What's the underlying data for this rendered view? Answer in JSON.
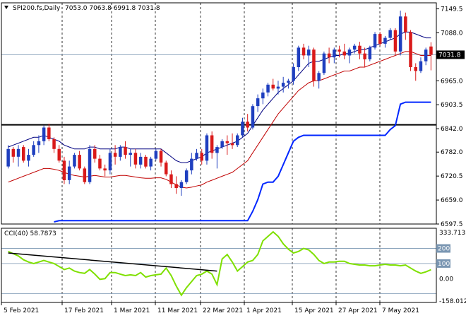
{
  "window": {
    "title": "SPI200.fs,Daily",
    "ohlc": "7053.0 7063.8 6991.8 7031.8",
    "collapse_icon": "triangle-down-icon"
  },
  "cci_panel": {
    "title": "CCI(40) 58.7873"
  },
  "colors": {
    "background": "#ffffff",
    "bull_candle": "#1f3fbf",
    "bear_candle": "#d91a1a",
    "upper_envelope": "#000080",
    "lower_envelope": "#c00000",
    "support_line": "#0026ff",
    "horizontal_level": "#000000",
    "cci_line": "#7fe000",
    "cci_levels": "#7a96b2",
    "current_price_tag": "#000000"
  },
  "chart_data": [
    {
      "type": "candlestick",
      "title": "SPI200.fs,Daily",
      "x_tick_labels": [
        "5 Feb 2021",
        "17 Feb 2021",
        "1 Mar 2021",
        "11 Mar 2021",
        "22 Mar 2021",
        "1 Apr 2021",
        "15 Apr 2021",
        "27 Apr 2021",
        "7 May 2021"
      ],
      "y_tick_labels": [
        "7149.5",
        "7088.0",
        "7031.8",
        "6965.0",
        "6903.5",
        "6842.0",
        "6782.0",
        "6720.5",
        "6659.0",
        "6597.5"
      ],
      "ylim": [
        6597.5,
        7165
      ],
      "current_price": 7031.8,
      "horizontal_level": 6852,
      "candles": [
        [
          6745,
          6800,
          6740,
          6790
        ],
        [
          6790,
          6795,
          6755,
          6770
        ],
        [
          6770,
          6800,
          6745,
          6790
        ],
        [
          6795,
          6800,
          6755,
          6760
        ],
        [
          6760,
          6790,
          6745,
          6775
        ],
        [
          6775,
          6810,
          6770,
          6800
        ],
        [
          6800,
          6825,
          6780,
          6810
        ],
        [
          6810,
          6850,
          6800,
          6845
        ],
        [
          6845,
          6855,
          6810,
          6815
        ],
        [
          6815,
          6820,
          6780,
          6790
        ],
        [
          6790,
          6800,
          6755,
          6760
        ],
        [
          6760,
          6770,
          6700,
          6710
        ],
        [
          6710,
          6760,
          6700,
          6745
        ],
        [
          6745,
          6780,
          6740,
          6775
        ],
        [
          6775,
          6785,
          6735,
          6740
        ],
        [
          6740,
          6745,
          6700,
          6705
        ],
        [
          6705,
          6800,
          6700,
          6790
        ],
        [
          6790,
          6800,
          6755,
          6765
        ],
        [
          6765,
          6775,
          6735,
          6740
        ],
        [
          6740,
          6750,
          6720,
          6735
        ],
        [
          6735,
          6790,
          6725,
          6780
        ],
        [
          6780,
          6800,
          6750,
          6770
        ],
        [
          6770,
          6800,
          6760,
          6795
        ],
        [
          6795,
          6810,
          6765,
          6775
        ],
        [
          6775,
          6790,
          6745,
          6780
        ],
        [
          6780,
          6790,
          6740,
          6750
        ],
        [
          6750,
          6780,
          6740,
          6770
        ],
        [
          6770,
          6775,
          6740,
          6745
        ],
        [
          6745,
          6770,
          6735,
          6765
        ],
        [
          6765,
          6790,
          6760,
          6785
        ],
        [
          6785,
          6790,
          6745,
          6755
        ],
        [
          6755,
          6760,
          6720,
          6725
        ],
        [
          6725,
          6735,
          6690,
          6700
        ],
        [
          6700,
          6720,
          6675,
          6690
        ],
        [
          6690,
          6710,
          6670,
          6705
        ],
        [
          6705,
          6740,
          6700,
          6735
        ],
        [
          6735,
          6780,
          6725,
          6765
        ],
        [
          6765,
          6790,
          6760,
          6780
        ],
        [
          6780,
          6790,
          6750,
          6760
        ],
        [
          6760,
          6830,
          6750,
          6825
        ],
        [
          6825,
          6835,
          6765,
          6780
        ],
        [
          6780,
          6800,
          6740,
          6795
        ],
        [
          6795,
          6815,
          6790,
          6810
        ],
        [
          6810,
          6825,
          6775,
          6805
        ],
        [
          6805,
          6830,
          6790,
          6800
        ],
        [
          6800,
          6830,
          6795,
          6825
        ],
        [
          6825,
          6870,
          6820,
          6860
        ],
        [
          6860,
          6880,
          6835,
          6845
        ],
        [
          6845,
          6905,
          6840,
          6900
        ],
        [
          6900,
          6930,
          6885,
          6920
        ],
        [
          6920,
          6945,
          6905,
          6935
        ],
        [
          6935,
          6960,
          6925,
          6955
        ],
        [
          6955,
          6970,
          6940,
          6945
        ],
        [
          6945,
          6965,
          6930,
          6950
        ],
        [
          6950,
          6975,
          6935,
          6960
        ],
        [
          6960,
          6970,
          6945,
          6965
        ],
        [
          6965,
          7010,
          6955,
          7000
        ],
        [
          7000,
          7055,
          6990,
          7050
        ],
        [
          7050,
          7060,
          7020,
          7030
        ],
        [
          7030,
          7055,
          7000,
          7045
        ],
        [
          7045,
          7050,
          6950,
          6965
        ],
        [
          6965,
          6990,
          6945,
          6985
        ],
        [
          6985,
          7040,
          6980,
          7035
        ],
        [
          7035,
          7050,
          7010,
          7025
        ],
        [
          7025,
          7050,
          7010,
          7045
        ],
        [
          7045,
          7055,
          7025,
          7040
        ],
        [
          7040,
          7060,
          7020,
          7030
        ],
        [
          7030,
          7050,
          7010,
          7045
        ],
        [
          7045,
          7060,
          7035,
          7055
        ],
        [
          7055,
          7065,
          7020,
          7035
        ],
        [
          7035,
          7050,
          7000,
          7020
        ],
        [
          7020,
          7055,
          7015,
          7050
        ],
        [
          7050,
          7090,
          7045,
          7085
        ],
        [
          7085,
          7090,
          7055,
          7060
        ],
        [
          7060,
          7080,
          7050,
          7075
        ],
        [
          7075,
          7100,
          7070,
          7095
        ],
        [
          7095,
          7100,
          7030,
          7040
        ],
        [
          7040,
          7145,
          7030,
          7130
        ],
        [
          7130,
          7140,
          7070,
          7090
        ],
        [
          7090,
          7095,
          6990,
          7000
        ],
        [
          7000,
          7010,
          6965,
          6990
        ],
        [
          6990,
          7025,
          6985,
          7015
        ],
        [
          7015,
          7050,
          7005,
          7045
        ],
        [
          7053,
          7063.8,
          6991.8,
          7031.8
        ]
      ],
      "upper_envelope": [
        6795,
        6800,
        6805,
        6810,
        6815,
        6820,
        6820,
        6825,
        6820,
        6815,
        6810,
        6800,
        6795,
        6790,
        6790,
        6790,
        6795,
        6795,
        6790,
        6790,
        6790,
        6790,
        6795,
        6795,
        6790,
        6790,
        6790,
        6790,
        6790,
        6790,
        6790,
        6780,
        6770,
        6760,
        6755,
        6755,
        6760,
        6765,
        6770,
        6780,
        6785,
        6790,
        6795,
        6800,
        6805,
        6810,
        6820,
        6830,
        6850,
        6870,
        6890,
        6905,
        6920,
        6935,
        6945,
        6955,
        6965,
        6980,
        6995,
        7010,
        7015,
        7015,
        7020,
        7025,
        7030,
        7030,
        7035,
        7035,
        7040,
        7045,
        7045,
        7050,
        7055,
        7060,
        7065,
        7070,
        7075,
        7085,
        7090,
        7090,
        7085,
        7080,
        7075,
        7075
      ],
      "lower_envelope": [
        6705,
        6710,
        6715,
        6720,
        6725,
        6730,
        6735,
        6740,
        6740,
        6738,
        6735,
        6730,
        6725,
        6722,
        6720,
        6718,
        6720,
        6722,
        6720,
        6718,
        6718,
        6720,
        6722,
        6722,
        6720,
        6718,
        6716,
        6715,
        6715,
        6716,
        6716,
        6712,
        6705,
        6698,
        6692,
        6690,
        6692,
        6695,
        6698,
        6705,
        6710,
        6715,
        6720,
        6725,
        6730,
        6740,
        6750,
        6760,
        6780,
        6800,
        6820,
        6840,
        6860,
        6880,
        6895,
        6910,
        6925,
        6940,
        6950,
        6960,
        6965,
        6965,
        6970,
        6975,
        6980,
        6985,
        6990,
        6990,
        6995,
        7000,
        7000,
        7005,
        7010,
        7015,
        7020,
        7025,
        7030,
        7035,
        7040,
        7040,
        7035,
        7030,
        7030,
        7030
      ],
      "support_level": [
        null,
        null,
        null,
        null,
        null,
        null,
        null,
        null,
        null,
        6603,
        6606,
        6606,
        6606,
        6606,
        6606,
        6606,
        6606,
        6606,
        6606,
        6606,
        6606,
        6606,
        6606,
        6606,
        6606,
        6606,
        6606,
        6606,
        6606,
        6606,
        6606,
        6606,
        6606,
        6606,
        6606,
        6606,
        6606,
        6606,
        6606,
        6606,
        6606,
        6606,
        6606,
        6606,
        6606,
        6606,
        6606,
        6606,
        6630,
        6660,
        6700,
        6705,
        6705,
        6720,
        6750,
        6780,
        6810,
        6820,
        6825,
        6825,
        6825,
        6825,
        6825,
        6825,
        6825,
        6825,
        6825,
        6825,
        6825,
        6825,
        6825,
        6825,
        6825,
        6825,
        6825,
        6840,
        6850,
        6905,
        6910,
        6910,
        6910,
        6910,
        6910,
        6910
      ]
    },
    {
      "type": "line",
      "title": "CCI(40) 58.7873",
      "y_tick_labels": [
        "333.7135",
        "200",
        "100",
        "0.00",
        "-158.0124"
      ],
      "ylim": [
        -158.0124,
        333.7135
      ],
      "levels": [
        200,
        100,
        -100
      ],
      "cci": [
        180,
        165,
        150,
        125,
        110,
        100,
        110,
        120,
        110,
        100,
        80,
        60,
        70,
        50,
        40,
        35,
        60,
        30,
        -5,
        0,
        40,
        40,
        30,
        20,
        25,
        20,
        40,
        10,
        20,
        25,
        30,
        70,
        20,
        -50,
        -110,
        -60,
        -20,
        20,
        30,
        50,
        30,
        -40,
        130,
        160,
        110,
        50,
        80,
        110,
        120,
        160,
        250,
        280,
        310,
        280,
        230,
        195,
        170,
        180,
        200,
        190,
        160,
        120,
        100,
        110,
        110,
        115,
        115,
        100,
        95,
        90,
        90,
        85,
        85,
        90,
        95,
        90,
        90,
        85,
        90,
        70,
        50,
        35,
        45,
        58.7873
      ],
      "trendline": [
        [
          0,
          170
        ],
        [
          41,
          50
        ]
      ]
    }
  ]
}
